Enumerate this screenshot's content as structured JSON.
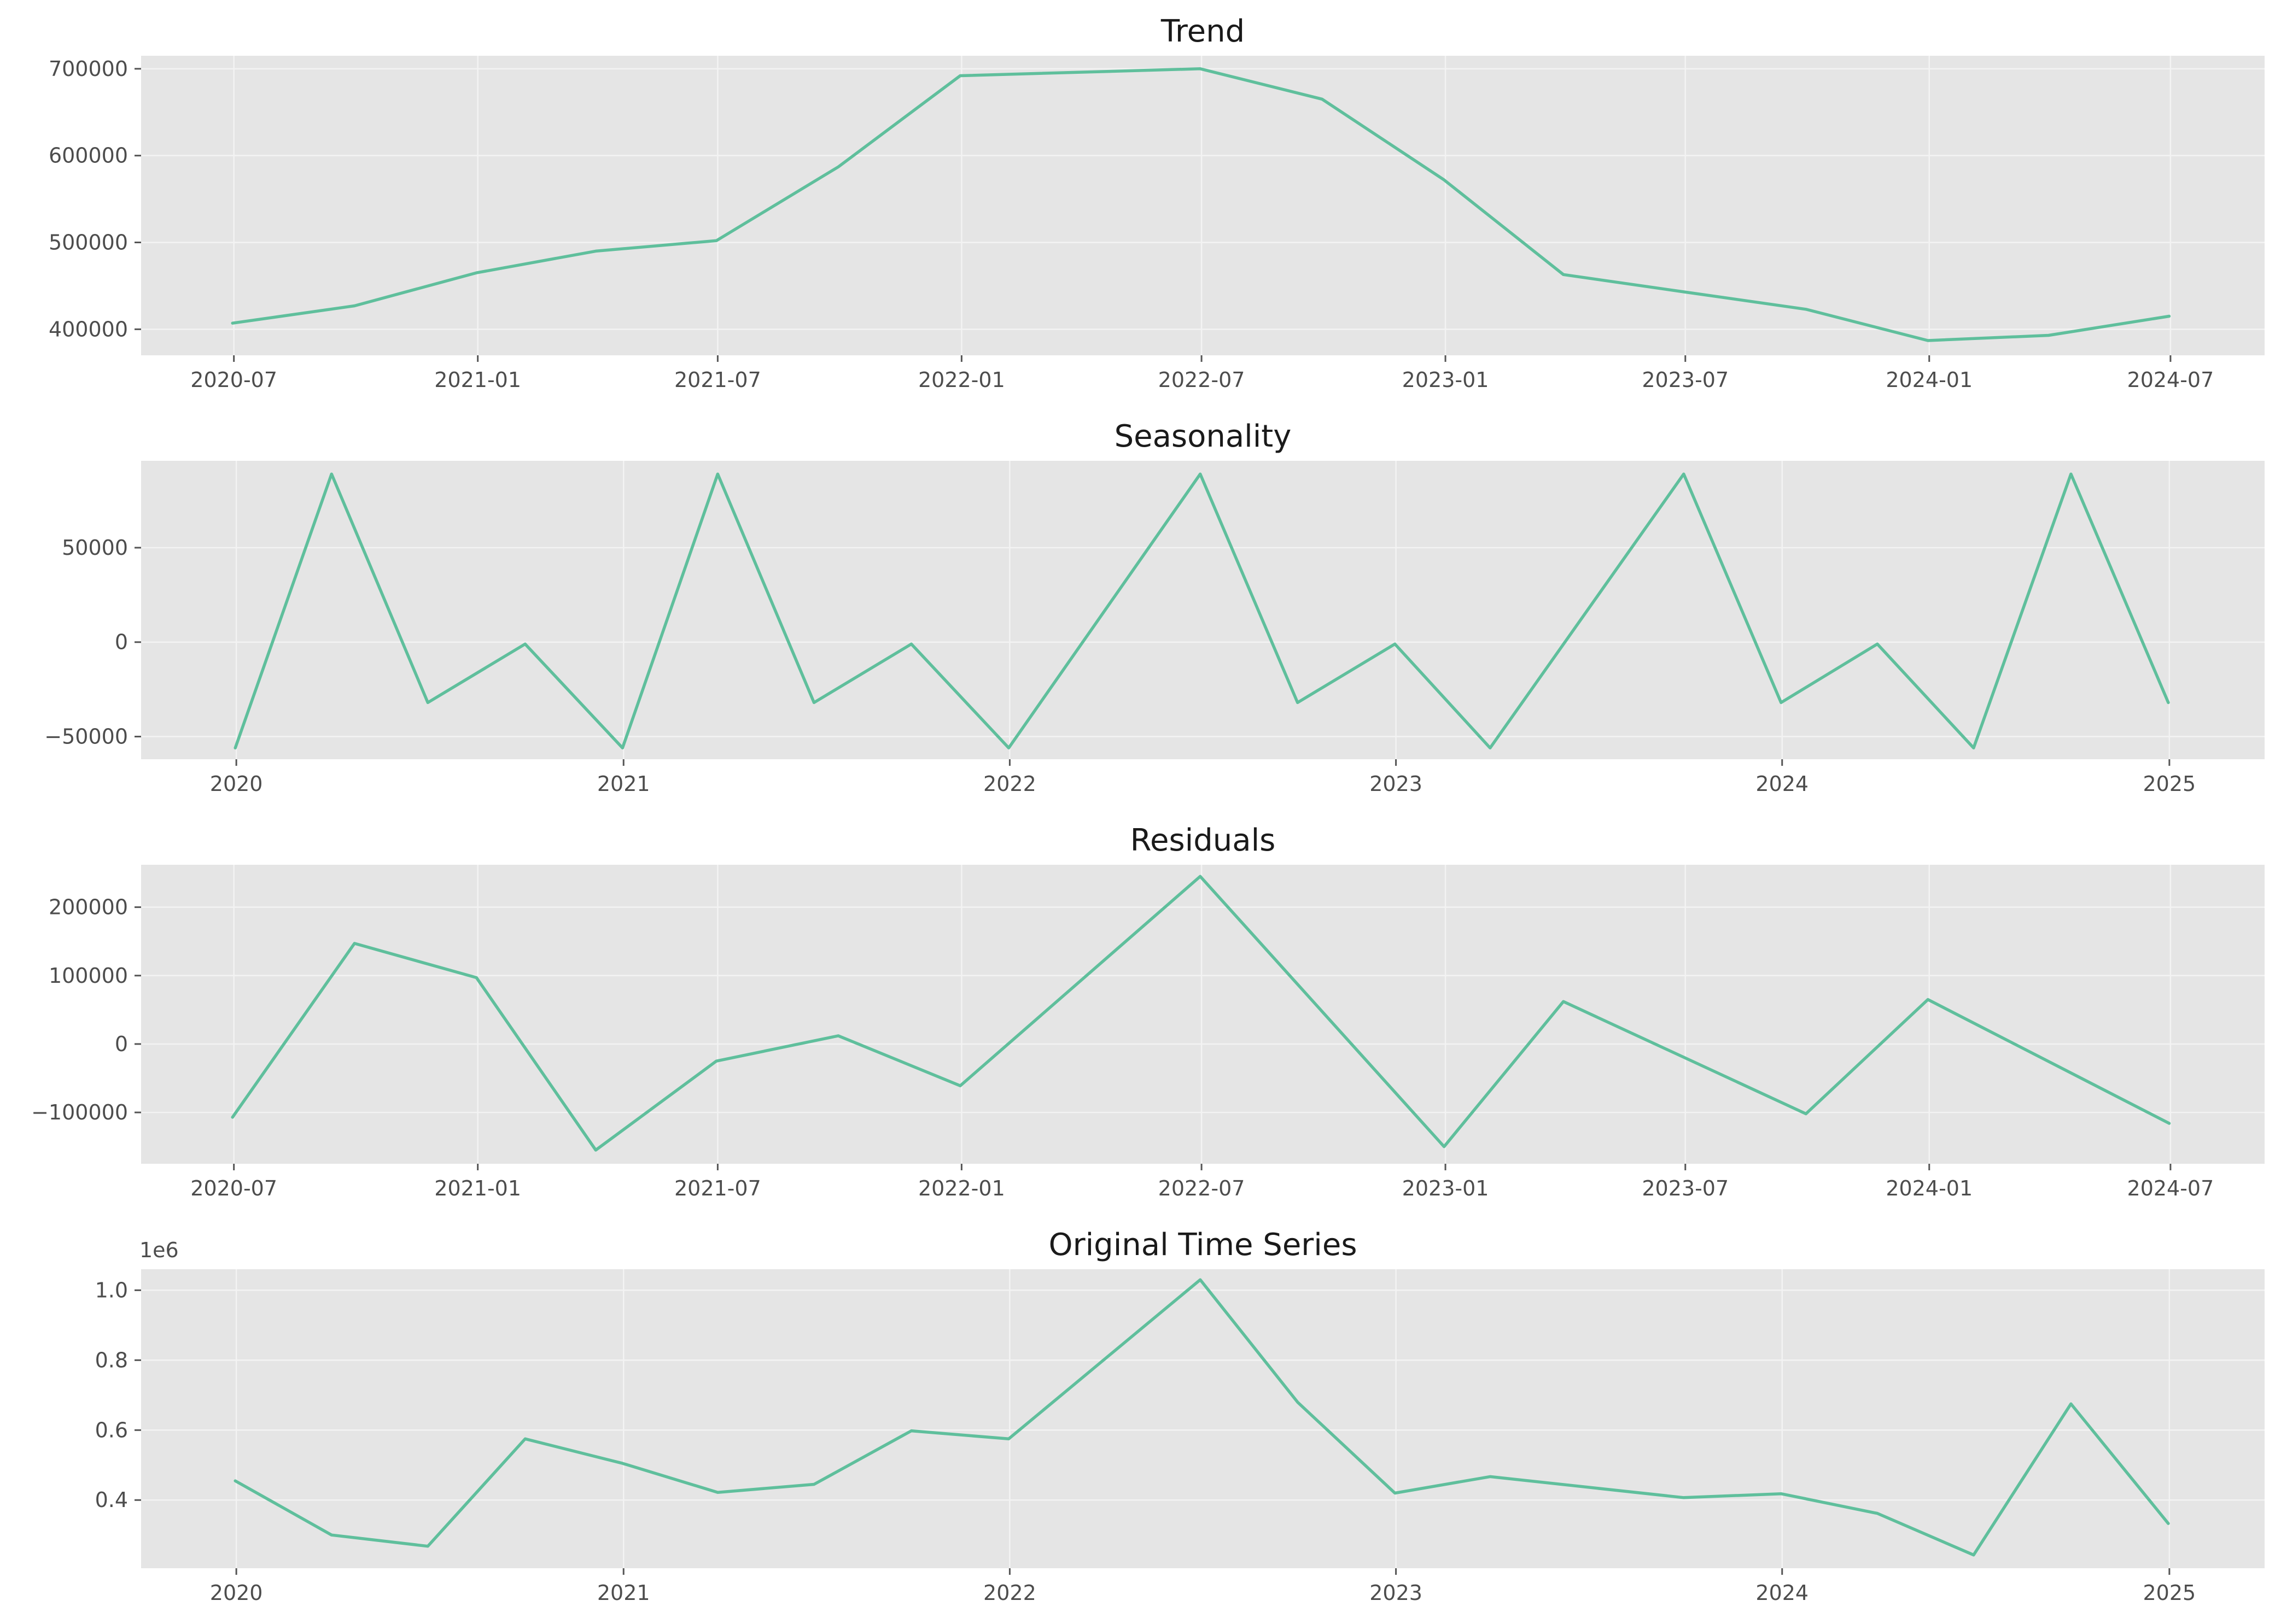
{
  "chart_data": [
    {
      "type": "line",
      "title": "Trend",
      "xlabel": "",
      "ylabel": "",
      "axis_x": "date",
      "xlim": [
        "2020-04-22",
        "2024-09-10"
      ],
      "ylim": [
        370000,
        715000
      ],
      "x_ticks": [
        "2020-07",
        "2021-01",
        "2021-07",
        "2022-01",
        "2022-07",
        "2023-01",
        "2023-07",
        "2024-01",
        "2024-07"
      ],
      "y_ticks": [
        "400000",
        "500000",
        "600000",
        "700000"
      ],
      "x": [
        "2020-06-30",
        "2020-09-30",
        "2020-12-31",
        "2021-03-31",
        "2021-06-30",
        "2021-09-30",
        "2021-12-31",
        "2022-06-30",
        "2022-09-30",
        "2022-12-31",
        "2023-03-31",
        "2023-06-30",
        "2023-09-30",
        "2023-12-31",
        "2024-03-31",
        "2024-06-30"
      ],
      "series": [
        {
          "name": "Trend",
          "values": [
            407000,
            427000,
            465000,
            490000,
            502000,
            587000,
            692000,
            700000,
            665000,
            572000,
            463000,
            443000,
            423000,
            387000,
            393000,
            415000
          ]
        }
      ],
      "grid": true,
      "color": "#5fbf9c"
    },
    {
      "type": "line",
      "title": "Seasonality",
      "xlabel": "",
      "ylabel": "",
      "axis_x": "date",
      "xlim": [
        "2019-10-03",
        "2025-04-01"
      ],
      "ylim": [
        -62000,
        96000
      ],
      "x_ticks": [
        "2020",
        "2021",
        "2022",
        "2023",
        "2024",
        "2025"
      ],
      "y_ticks": [
        "−50000",
        "0",
        "50000"
      ],
      "x": [
        "2019-12-31",
        "2020-03-31",
        "2020-06-30",
        "2020-09-30",
        "2020-12-31",
        "2021-03-31",
        "2021-06-30",
        "2021-09-30",
        "2021-12-31",
        "2022-06-30",
        "2022-09-30",
        "2022-12-31",
        "2023-03-31",
        "2023-09-30",
        "2023-12-31",
        "2024-03-31",
        "2024-06-30",
        "2024-09-30",
        "2024-12-31"
      ],
      "series": [
        {
          "name": "Seasonality",
          "values": [
            -56000,
            89000,
            -32000,
            -1000,
            -56000,
            89000,
            -32000,
            -1000,
            -56000,
            89000,
            -32000,
            -1000,
            -56000,
            89000,
            -32000,
            -1000,
            -56000,
            89000,
            -32000
          ]
        }
      ],
      "grid": true,
      "color": "#5fbf9c"
    },
    {
      "type": "line",
      "title": "Residuals",
      "xlabel": "",
      "ylabel": "",
      "axis_x": "date",
      "xlim": [
        "2020-04-22",
        "2024-09-10"
      ],
      "ylim": [
        -175000,
        262000
      ],
      "x_ticks": [
        "2020-07",
        "2021-01",
        "2021-07",
        "2022-01",
        "2022-07",
        "2023-01",
        "2023-07",
        "2024-01",
        "2024-07"
      ],
      "y_ticks": [
        "−100000",
        "0",
        "100000",
        "200000"
      ],
      "x": [
        "2020-06-30",
        "2020-09-30",
        "2020-12-31",
        "2021-03-31",
        "2021-06-30",
        "2021-09-30",
        "2021-12-31",
        "2022-06-30",
        "2022-12-31",
        "2023-03-31",
        "2023-09-30",
        "2023-12-31",
        "2024-06-30"
      ],
      "series": [
        {
          "name": "Residuals",
          "values": [
            -107000,
            147000,
            97000,
            -155000,
            -25000,
            12000,
            -61000,
            245000,
            -150000,
            62000,
            -102000,
            65000,
            -116000
          ]
        }
      ],
      "grid": true,
      "color": "#5fbf9c"
    },
    {
      "type": "line",
      "title": "Original Time Series",
      "xlabel": "",
      "ylabel": "",
      "axis_x": "date",
      "xlim": [
        "2019-10-03",
        "2025-04-01"
      ],
      "ylim": [
        0.205,
        1.06
      ],
      "y_offset_label": "1e6",
      "x_ticks": [
        "2020",
        "2021",
        "2022",
        "2023",
        "2024",
        "2025"
      ],
      "y_ticks": [
        "0.4",
        "0.6",
        "0.8",
        "1.0"
      ],
      "x": [
        "2019-12-31",
        "2020-03-31",
        "2020-06-30",
        "2020-09-30",
        "2020-12-31",
        "2021-03-31",
        "2021-06-30",
        "2021-09-30",
        "2021-12-31",
        "2022-06-30",
        "2022-09-30",
        "2022-12-31",
        "2023-03-31",
        "2023-09-30",
        "2023-12-31",
        "2024-03-31",
        "2024-06-30",
        "2024-09-30",
        "2024-12-31"
      ],
      "series": [
        {
          "name": "Original",
          "values": [
            0.455,
            0.3,
            0.268,
            0.575,
            0.505,
            0.422,
            0.445,
            0.598,
            0.575,
            1.03,
            0.68,
            0.42,
            0.467,
            0.407,
            0.418,
            0.362,
            0.243,
            0.675,
            0.333
          ]
        }
      ],
      "grid": true,
      "color": "#5fbf9c"
    }
  ]
}
